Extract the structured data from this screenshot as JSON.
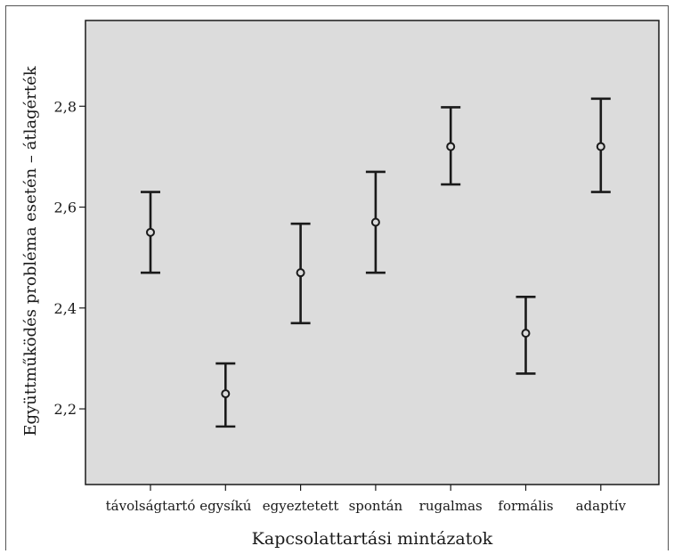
{
  "chart_data": {
    "type": "errorbar",
    "xlabel": "Kapcsolattartási mintázatok",
    "ylabel": "Együttműködés probléma esetén – átlagérték",
    "ylim": [
      2.05,
      2.97
    ],
    "yticks": [
      "2,2",
      "2,4",
      "2,6",
      "2,8"
    ],
    "ytick_values": [
      2.2,
      2.4,
      2.6,
      2.8
    ],
    "categories": [
      "távolságtartó",
      "egysíkú",
      "egyeztetett",
      "spontán",
      "rugalmas",
      "formális",
      "adaptív"
    ],
    "mean": [
      2.55,
      2.23,
      2.47,
      2.57,
      2.72,
      2.35,
      2.72
    ],
    "lower": [
      2.47,
      2.165,
      2.37,
      2.47,
      2.645,
      2.27,
      2.63
    ],
    "upper": [
      2.63,
      2.29,
      2.567,
      2.67,
      2.798,
      2.422,
      2.815
    ],
    "grid": false,
    "plot_background": "#dcdcdc",
    "mark_color": "#1a1a1a"
  }
}
